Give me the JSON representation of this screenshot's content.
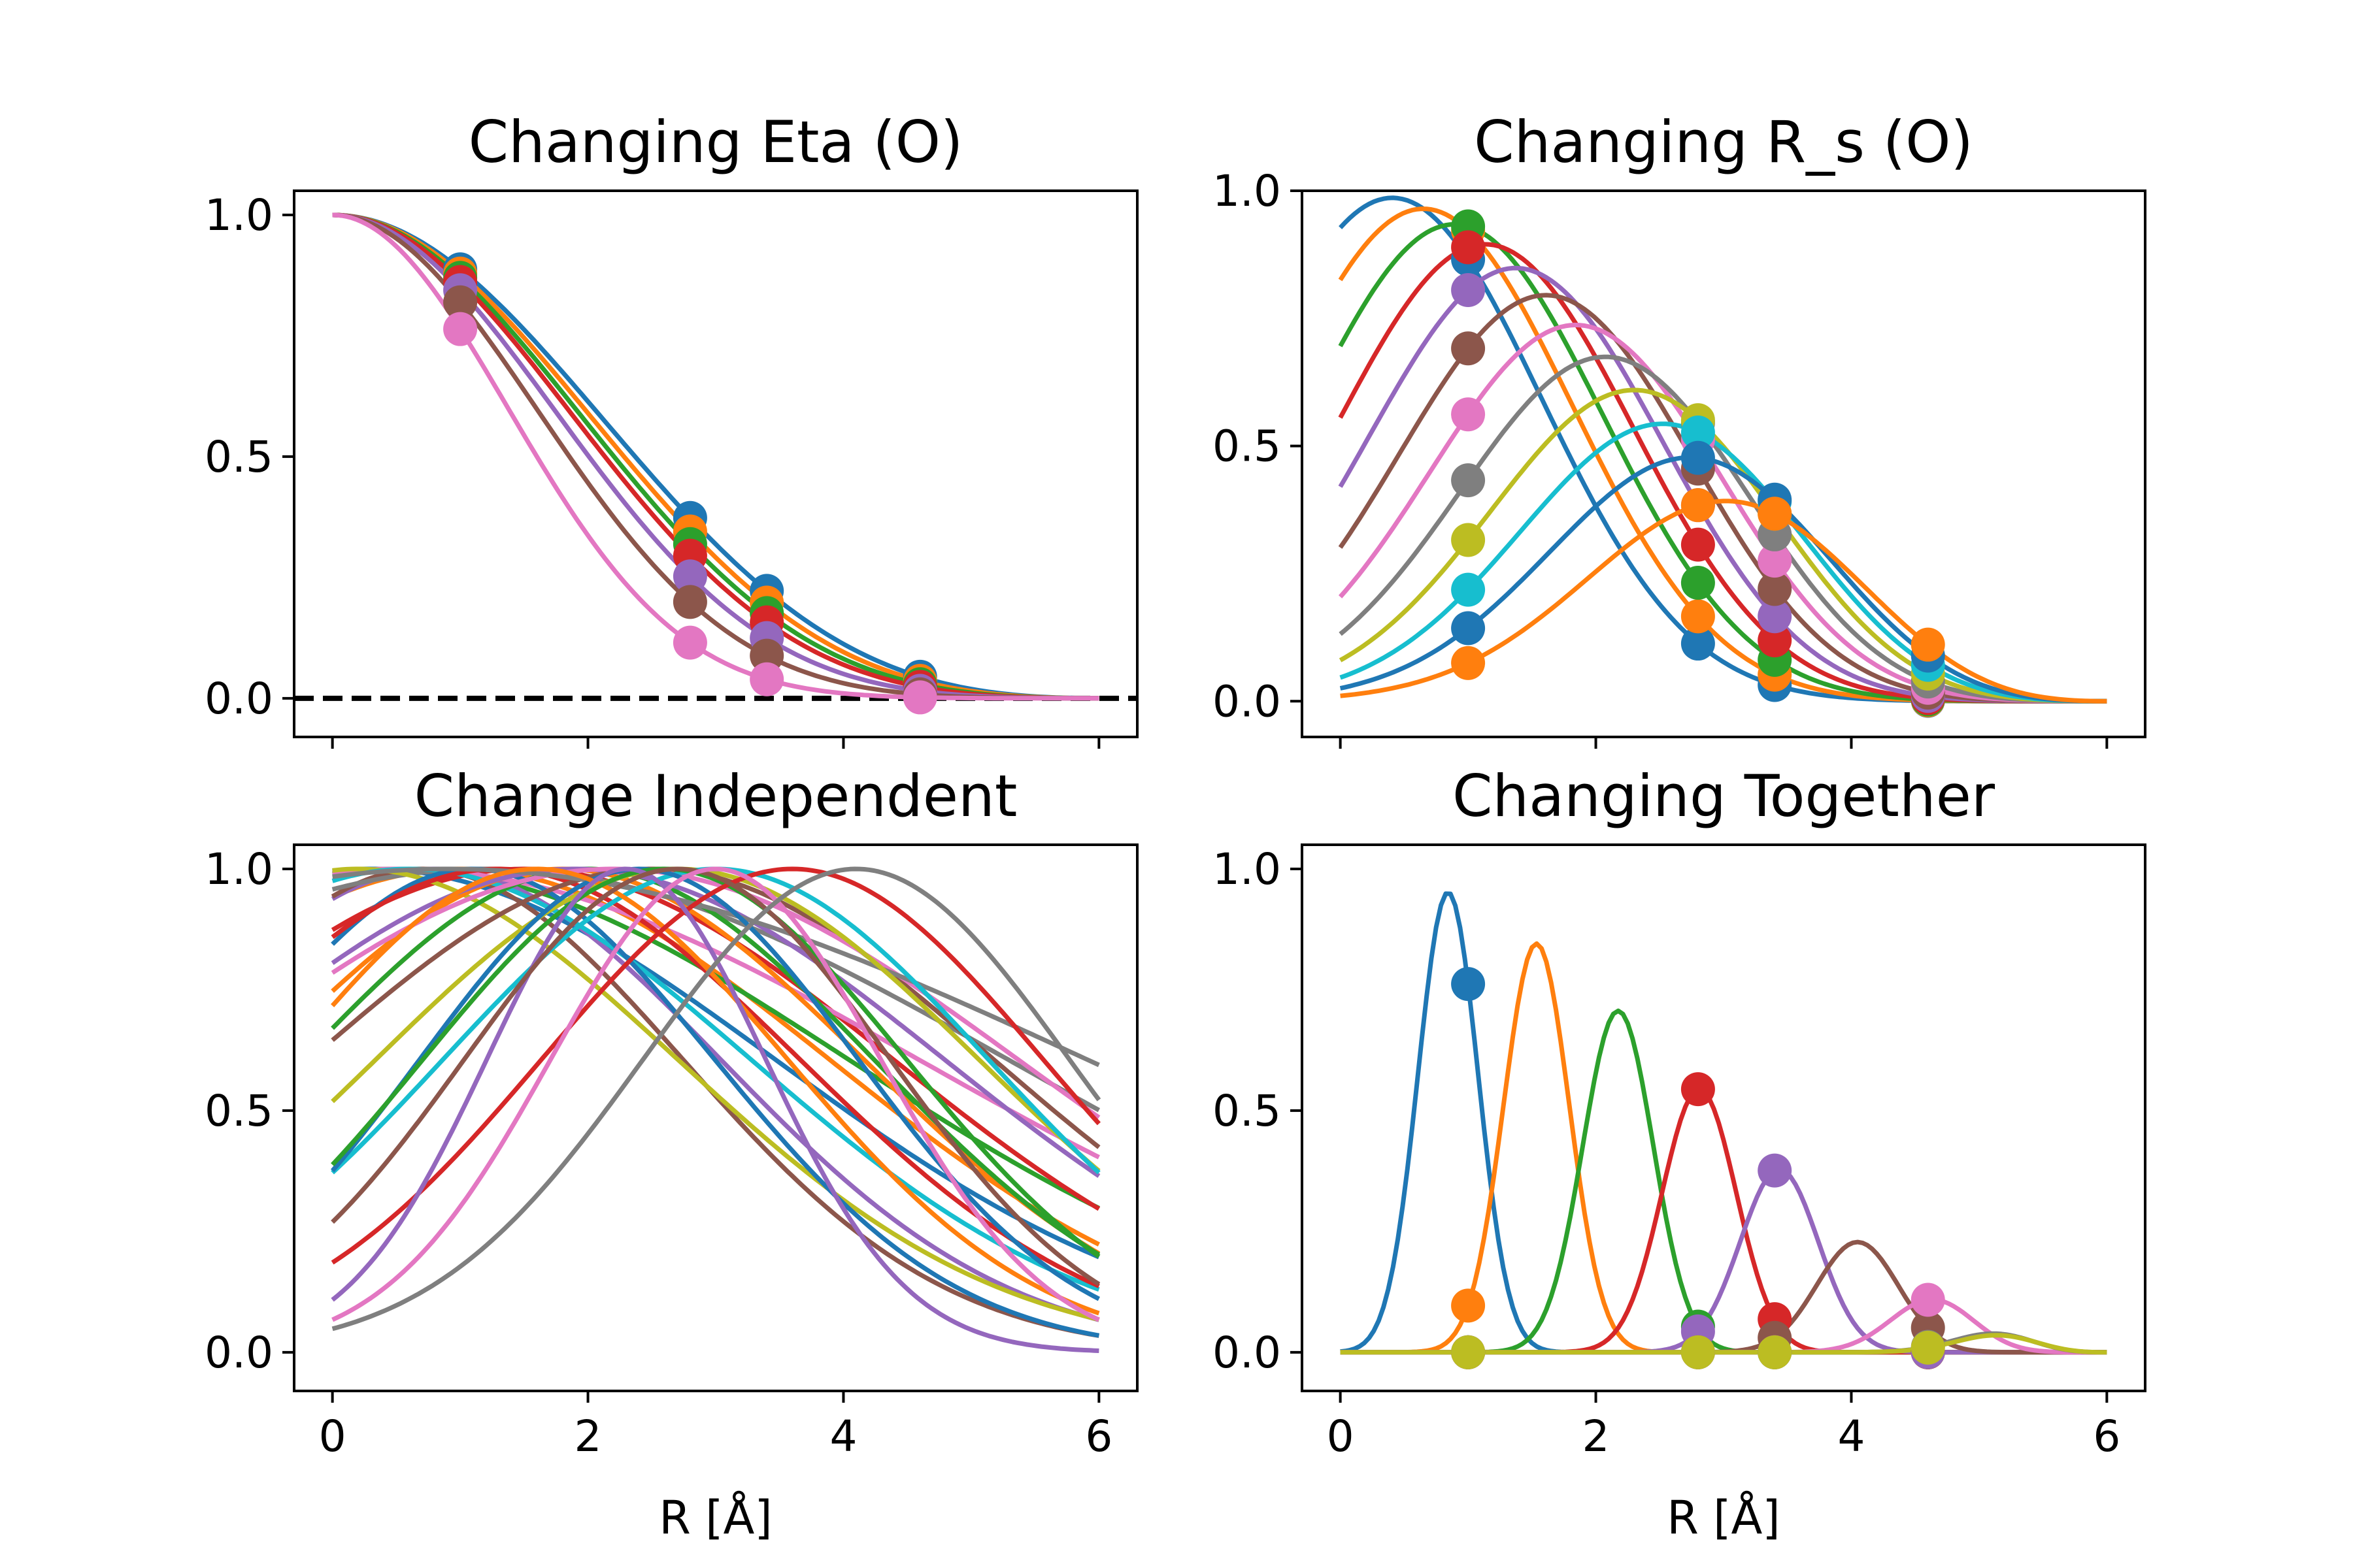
{
  "chart_data": [
    {
      "type": "line",
      "title": "Changing Eta (O)",
      "xlabel": "",
      "ylabel": "",
      "xlim": [
        -0.3,
        6.3
      ],
      "ylim": [
        -0.08,
        1.05
      ],
      "xticks": [
        0,
        2,
        4,
        6
      ],
      "yticks": [
        0.0,
        0.5,
        1.0
      ],
      "ytick_labels": [
        "0.0",
        "0.5",
        "1.0"
      ],
      "show_xtick_labels": false,
      "cutoff": 6,
      "reference_line": {
        "y": 0,
        "style": "dashed",
        "color": "#000000"
      },
      "series": [
        {
          "color": "#1f77b4",
          "eta": 0.05
        },
        {
          "color": "#ff7f0e",
          "eta": 0.06
        },
        {
          "color": "#2ca02c",
          "eta": 0.07
        },
        {
          "color": "#d62728",
          "eta": 0.08
        },
        {
          "color": "#9467bd",
          "eta": 0.1
        },
        {
          "color": "#8c564b",
          "eta": 0.13
        },
        {
          "color": "#e377c2",
          "eta": 0.2
        }
      ],
      "marker_x": [
        1.0,
        2.8,
        3.4,
        4.6
      ]
    },
    {
      "type": "line",
      "title": "Changing R_s (O)",
      "xlabel": "",
      "ylabel": "",
      "xlim": [
        -0.3,
        6.3
      ],
      "ylim": [
        -0.07,
        1.0
      ],
      "xticks": [
        0,
        2,
        4,
        6
      ],
      "yticks": [
        0.0,
        0.5,
        1.0
      ],
      "ytick_labels": [
        "0.0",
        "0.5",
        "1.0"
      ],
      "show_xtick_labels": false,
      "cutoff": 6,
      "eta": 0.3,
      "series": [
        {
          "color": "#1f77b4",
          "rs": 0.5
        },
        {
          "color": "#ff7f0e",
          "rs": 0.8
        },
        {
          "color": "#2ca02c",
          "rs": 1.1
        },
        {
          "color": "#d62728",
          "rs": 1.4
        },
        {
          "color": "#9467bd",
          "rs": 1.7
        },
        {
          "color": "#8c564b",
          "rs": 2.0
        },
        {
          "color": "#e377c2",
          "rs": 2.3
        },
        {
          "color": "#7f7f7f",
          "rs": 2.6
        },
        {
          "color": "#bcbd22",
          "rs": 2.9
        },
        {
          "color": "#17becf",
          "rs": 3.2
        },
        {
          "color": "#1f77b4",
          "rs": 3.5
        },
        {
          "color": "#ff7f0e",
          "rs": 3.9
        }
      ],
      "marker_x": [
        1.0,
        2.8,
        3.4,
        4.6
      ]
    },
    {
      "type": "line",
      "title": "Change Independent",
      "xlabel": "R [Å]",
      "ylabel": "",
      "xlim": [
        -0.3,
        6.3
      ],
      "ylim": [
        -0.08,
        1.05
      ],
      "xticks": [
        0,
        2,
        4,
        6
      ],
      "xtick_labels": [
        "0",
        "2",
        "4",
        "6"
      ],
      "yticks": [
        0.0,
        0.5,
        1.0
      ],
      "ytick_labels": [
        "0.0",
        "0.5",
        "1.0"
      ],
      "show_xtick_labels": true,
      "series": [
        {
          "color": "#1f77b4",
          "rs": 0.3,
          "eta": 0.05
        },
        {
          "color": "#ff7f0e",
          "rs": 1.0,
          "eta": 0.06
        },
        {
          "color": "#2ca02c",
          "rs": 0.5,
          "eta": 0.04
        },
        {
          "color": "#d62728",
          "rs": 1.5,
          "eta": 0.06
        },
        {
          "color": "#9467bd",
          "rs": 0.8,
          "eta": 0.1
        },
        {
          "color": "#8c564b",
          "rs": 0.7,
          "eta": 0.12
        },
        {
          "color": "#e377c2",
          "rs": 0.5,
          "eta": 0.03
        },
        {
          "color": "#7f7f7f",
          "rs": 1.2,
          "eta": 0.03
        },
        {
          "color": "#bcbd22",
          "rs": 0.2,
          "eta": 0.08
        },
        {
          "color": "#17becf",
          "rs": 0.6,
          "eta": 0.07
        },
        {
          "color": "#1f77b4",
          "rs": 1.1,
          "eta": 0.14
        },
        {
          "color": "#ff7f0e",
          "rs": 1.8,
          "eta": 0.09
        },
        {
          "color": "#2ca02c",
          "rs": 2.0,
          "eta": 0.1
        },
        {
          "color": "#d62728",
          "rs": 1.3,
          "eta": 0.09
        },
        {
          "color": "#9467bd",
          "rs": 1.9,
          "eta": 0.06
        },
        {
          "color": "#8c564b",
          "rs": 2.5,
          "eta": 0.07
        },
        {
          "color": "#e377c2",
          "rs": 2.2,
          "eta": 0.05
        },
        {
          "color": "#7f7f7f",
          "rs": 0.9,
          "eta": 0.02
        },
        {
          "color": "#bcbd22",
          "rs": 2.7,
          "eta": 0.09
        },
        {
          "color": "#17becf",
          "rs": 3.0,
          "eta": 0.11
        },
        {
          "color": "#1f77b4",
          "rs": 2.4,
          "eta": 0.17
        },
        {
          "color": "#ff7f0e",
          "rs": 1.6,
          "eta": 0.13
        },
        {
          "color": "#2ca02c",
          "rs": 2.6,
          "eta": 0.14
        },
        {
          "color": "#d62728",
          "rs": 3.6,
          "eta": 0.13
        },
        {
          "color": "#9467bd",
          "rs": 2.3,
          "eta": 0.42
        },
        {
          "color": "#8c564b",
          "rs": 2.7,
          "eta": 0.18
        },
        {
          "color": "#e377c2",
          "rs": 3.0,
          "eta": 0.3
        },
        {
          "color": "#7f7f7f",
          "rs": 4.1,
          "eta": 0.18
        }
      ]
    },
    {
      "type": "line",
      "title": "Changing Together",
      "xlabel": "R [Å]",
      "ylabel": "",
      "xlim": [
        -0.3,
        6.3
      ],
      "ylim": [
        -0.08,
        1.05
      ],
      "xticks": [
        0,
        2,
        4,
        6
      ],
      "xtick_labels": [
        "0",
        "2",
        "4",
        "6"
      ],
      "yticks": [
        0.0,
        0.5,
        1.0
      ],
      "ytick_labels": [
        "0.0",
        "0.5",
        "1.0"
      ],
      "show_xtick_labels": true,
      "cutoff": 6,
      "series": [
        {
          "color": "#1f77b4",
          "rs": 0.85,
          "eta": 9.0
        },
        {
          "color": "#ff7f0e",
          "rs": 1.55,
          "eta": 7.5
        },
        {
          "color": "#2ca02c",
          "rs": 2.2,
          "eta": 6.5
        },
        {
          "color": "#d62728",
          "rs": 2.85,
          "eta": 5.8
        },
        {
          "color": "#9467bd",
          "rs": 3.5,
          "eta": 5.2
        },
        {
          "color": "#8c564b",
          "rs": 4.15,
          "eta": 4.6
        },
        {
          "color": "#e377c2",
          "rs": 4.8,
          "eta": 4.2
        },
        {
          "color": "#7f7f7f",
          "rs": 5.4,
          "eta": 3.8
        },
        {
          "color": "#bcbd22",
          "rs": 5.45,
          "eta": 3.6
        }
      ],
      "marker_x": [
        1.0,
        2.8,
        3.4,
        4.6
      ]
    }
  ]
}
